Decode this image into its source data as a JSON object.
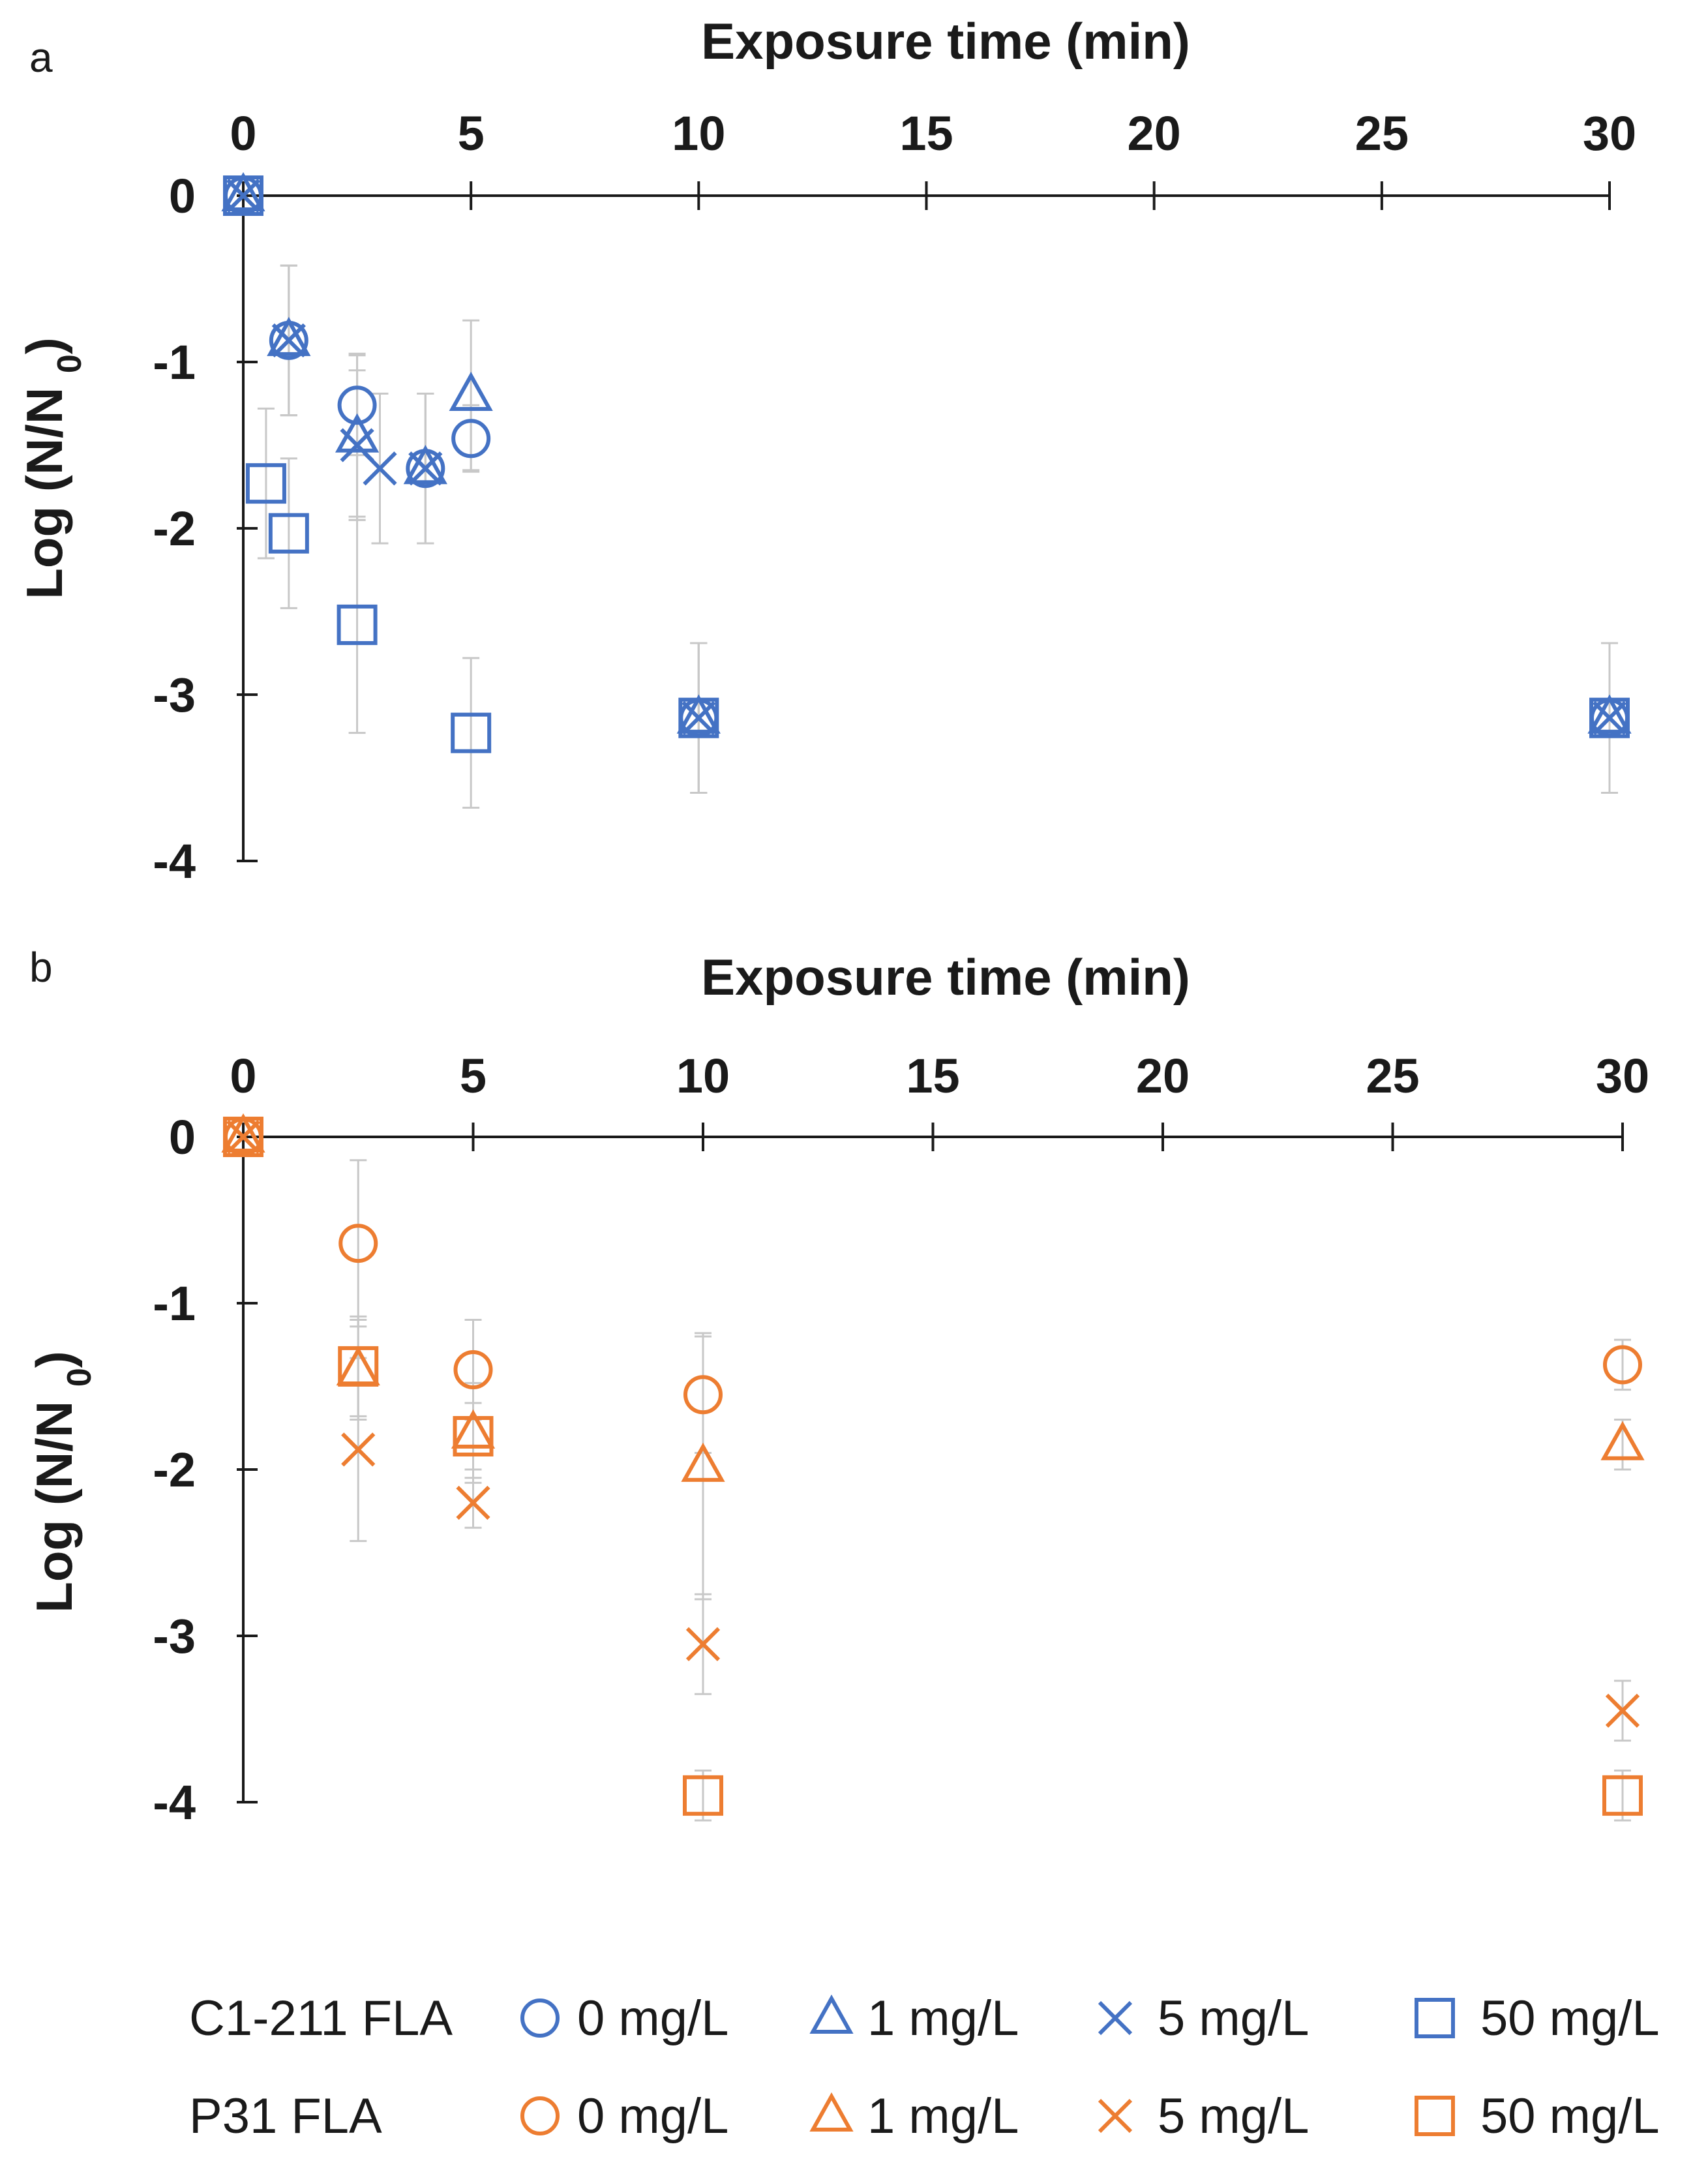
{
  "colors": {
    "c1": "#4472C4",
    "p31": "#ED7D31",
    "axis": "#1a1a1a",
    "errorbar": "#c8c8c8"
  },
  "chart_data": [
    {
      "panel": "a",
      "type": "scatter",
      "xlabel": "Exposure time (min)",
      "ylabel": "Log (N/N0)",
      "xlim": [
        0,
        30
      ],
      "ylim": [
        -4,
        0
      ],
      "xticks": [
        "0",
        "5",
        "10",
        "15",
        "20",
        "25",
        "30"
      ],
      "yticks": [
        "0",
        "-1",
        "-2",
        "-3",
        "-4"
      ],
      "x_axis_position": "top",
      "color": "#4472C4",
      "strain": "C1-211 FLA",
      "series": [
        {
          "name": "0 mg/L",
          "marker": "circle",
          "points": [
            {
              "x": 0,
              "y": 0
            },
            {
              "x": 1,
              "y": -0.87,
              "err": 0.45
            },
            {
              "x": 2.5,
              "y": -1.26,
              "err": 0.3
            },
            {
              "x": 4,
              "y": -1.64,
              "err": 0.45
            },
            {
              "x": 5,
              "y": -1.46,
              "err": 0.2
            },
            {
              "x": 10,
              "y": -3.14,
              "err": 0.45
            },
            {
              "x": 30,
              "y": -3.14,
              "err": 0.45
            }
          ]
        },
        {
          "name": "1 mg/L",
          "marker": "triangle",
          "points": [
            {
              "x": 0,
              "y": 0
            },
            {
              "x": 1,
              "y": -0.87,
              "err": 0.45
            },
            {
              "x": 2.5,
              "y": -1.45,
              "err": 0.5
            },
            {
              "x": 4,
              "y": -1.64,
              "err": 0.45
            },
            {
              "x": 5,
              "y": -1.2,
              "err": 0.45
            },
            {
              "x": 10,
              "y": -3.14,
              "err": 0.45
            },
            {
              "x": 30,
              "y": -3.14,
              "err": 0.45
            }
          ]
        },
        {
          "name": "5 mg/L",
          "marker": "cross",
          "points": [
            {
              "x": 0,
              "y": 0
            },
            {
              "x": 1,
              "y": -0.87,
              "err": 0.45
            },
            {
              "x": 2.5,
              "y": -1.5,
              "err": 0.45
            },
            {
              "x": 3,
              "y": -1.64,
              "err": 0.45
            },
            {
              "x": 4,
              "y": -1.64,
              "err": 0.45
            },
            {
              "x": 10,
              "y": -3.14,
              "err": 0.45
            },
            {
              "x": 30,
              "y": -3.14,
              "err": 0.45
            }
          ]
        },
        {
          "name": "50 mg/L",
          "marker": "square",
          "points": [
            {
              "x": 0,
              "y": 0
            },
            {
              "x": 0.5,
              "y": -1.73,
              "err": 0.45
            },
            {
              "x": 1,
              "y": -2.03,
              "err": 0.45
            },
            {
              "x": 2.5,
              "y": -2.58,
              "err": 0.65
            },
            {
              "x": 5,
              "y": -3.23,
              "err": 0.45
            },
            {
              "x": 10,
              "y": -3.14,
              "err": 0.45
            },
            {
              "x": 30,
              "y": -3.14,
              "err": 0.45
            }
          ]
        }
      ]
    },
    {
      "panel": "b",
      "type": "scatter",
      "xlabel": "Exposure time (min)",
      "ylabel": "Log (N/N0)",
      "xlim": [
        0,
        30
      ],
      "ylim": [
        -4,
        0
      ],
      "xticks": [
        "0",
        "5",
        "10",
        "15",
        "20",
        "25",
        "30"
      ],
      "yticks": [
        "0",
        "-1",
        "-2",
        "-3",
        "-4"
      ],
      "x_axis_position": "top",
      "color": "#ED7D31",
      "strain": "P31 FLA",
      "series": [
        {
          "name": "0 mg/L",
          "marker": "circle",
          "points": [
            {
              "x": 0,
              "y": 0
            },
            {
              "x": 2.5,
              "y": -0.64,
              "err": 0.5
            },
            {
              "x": 5,
              "y": -1.4,
              "err": 0.3
            },
            {
              "x": 10,
              "y": -1.55,
              "err": 0.35
            },
            {
              "x": 30,
              "y": -1.37,
              "err": 0.15
            }
          ]
        },
        {
          "name": "1 mg/L",
          "marker": "triangle",
          "points": [
            {
              "x": 0,
              "y": 0
            },
            {
              "x": 2.5,
              "y": -1.4,
              "err": 0.3
            },
            {
              "x": 5,
              "y": -1.78,
              "err": 0.3
            },
            {
              "x": 10,
              "y": -1.98,
              "err": 0.8
            },
            {
              "x": 30,
              "y": -1.85,
              "err": 0.15
            }
          ]
        },
        {
          "name": "5 mg/L",
          "marker": "cross",
          "points": [
            {
              "x": 0,
              "y": 0
            },
            {
              "x": 2.5,
              "y": -1.88,
              "err": 0.55
            },
            {
              "x": 5,
              "y": -2.2,
              "err": 0.15
            },
            {
              "x": 10,
              "y": -3.05,
              "err": 0.3
            },
            {
              "x": 30,
              "y": -3.45,
              "err": 0.18
            }
          ]
        },
        {
          "name": "50 mg/L",
          "marker": "square",
          "points": [
            {
              "x": 0,
              "y": 0
            },
            {
              "x": 2.5,
              "y": -1.38,
              "err": 0.3
            },
            {
              "x": 5,
              "y": -1.8,
              "err": 0.2
            },
            {
              "x": 10,
              "y": -3.96,
              "err": 0.15
            },
            {
              "x": 30,
              "y": -3.96,
              "err": 0.15
            }
          ]
        }
      ]
    }
  ],
  "legend": {
    "rows": [
      {
        "label": "C1-211 FLA",
        "color": "#4472C4",
        "entries": [
          {
            "marker": "circle",
            "label": "0 mg/L"
          },
          {
            "marker": "triangle",
            "label": "1 mg/L"
          },
          {
            "marker": "cross",
            "label": "5 mg/L"
          },
          {
            "marker": "square",
            "label": "50 mg/L"
          }
        ]
      },
      {
        "label": "P31 FLA",
        "color": "#ED7D31",
        "entries": [
          {
            "marker": "circle",
            "label": "0 mg/L"
          },
          {
            "marker": "triangle",
            "label": "1 mg/L"
          },
          {
            "marker": "cross",
            "label": "5 mg/L"
          },
          {
            "marker": "square",
            "label": "50 mg/L"
          }
        ]
      }
    ]
  }
}
